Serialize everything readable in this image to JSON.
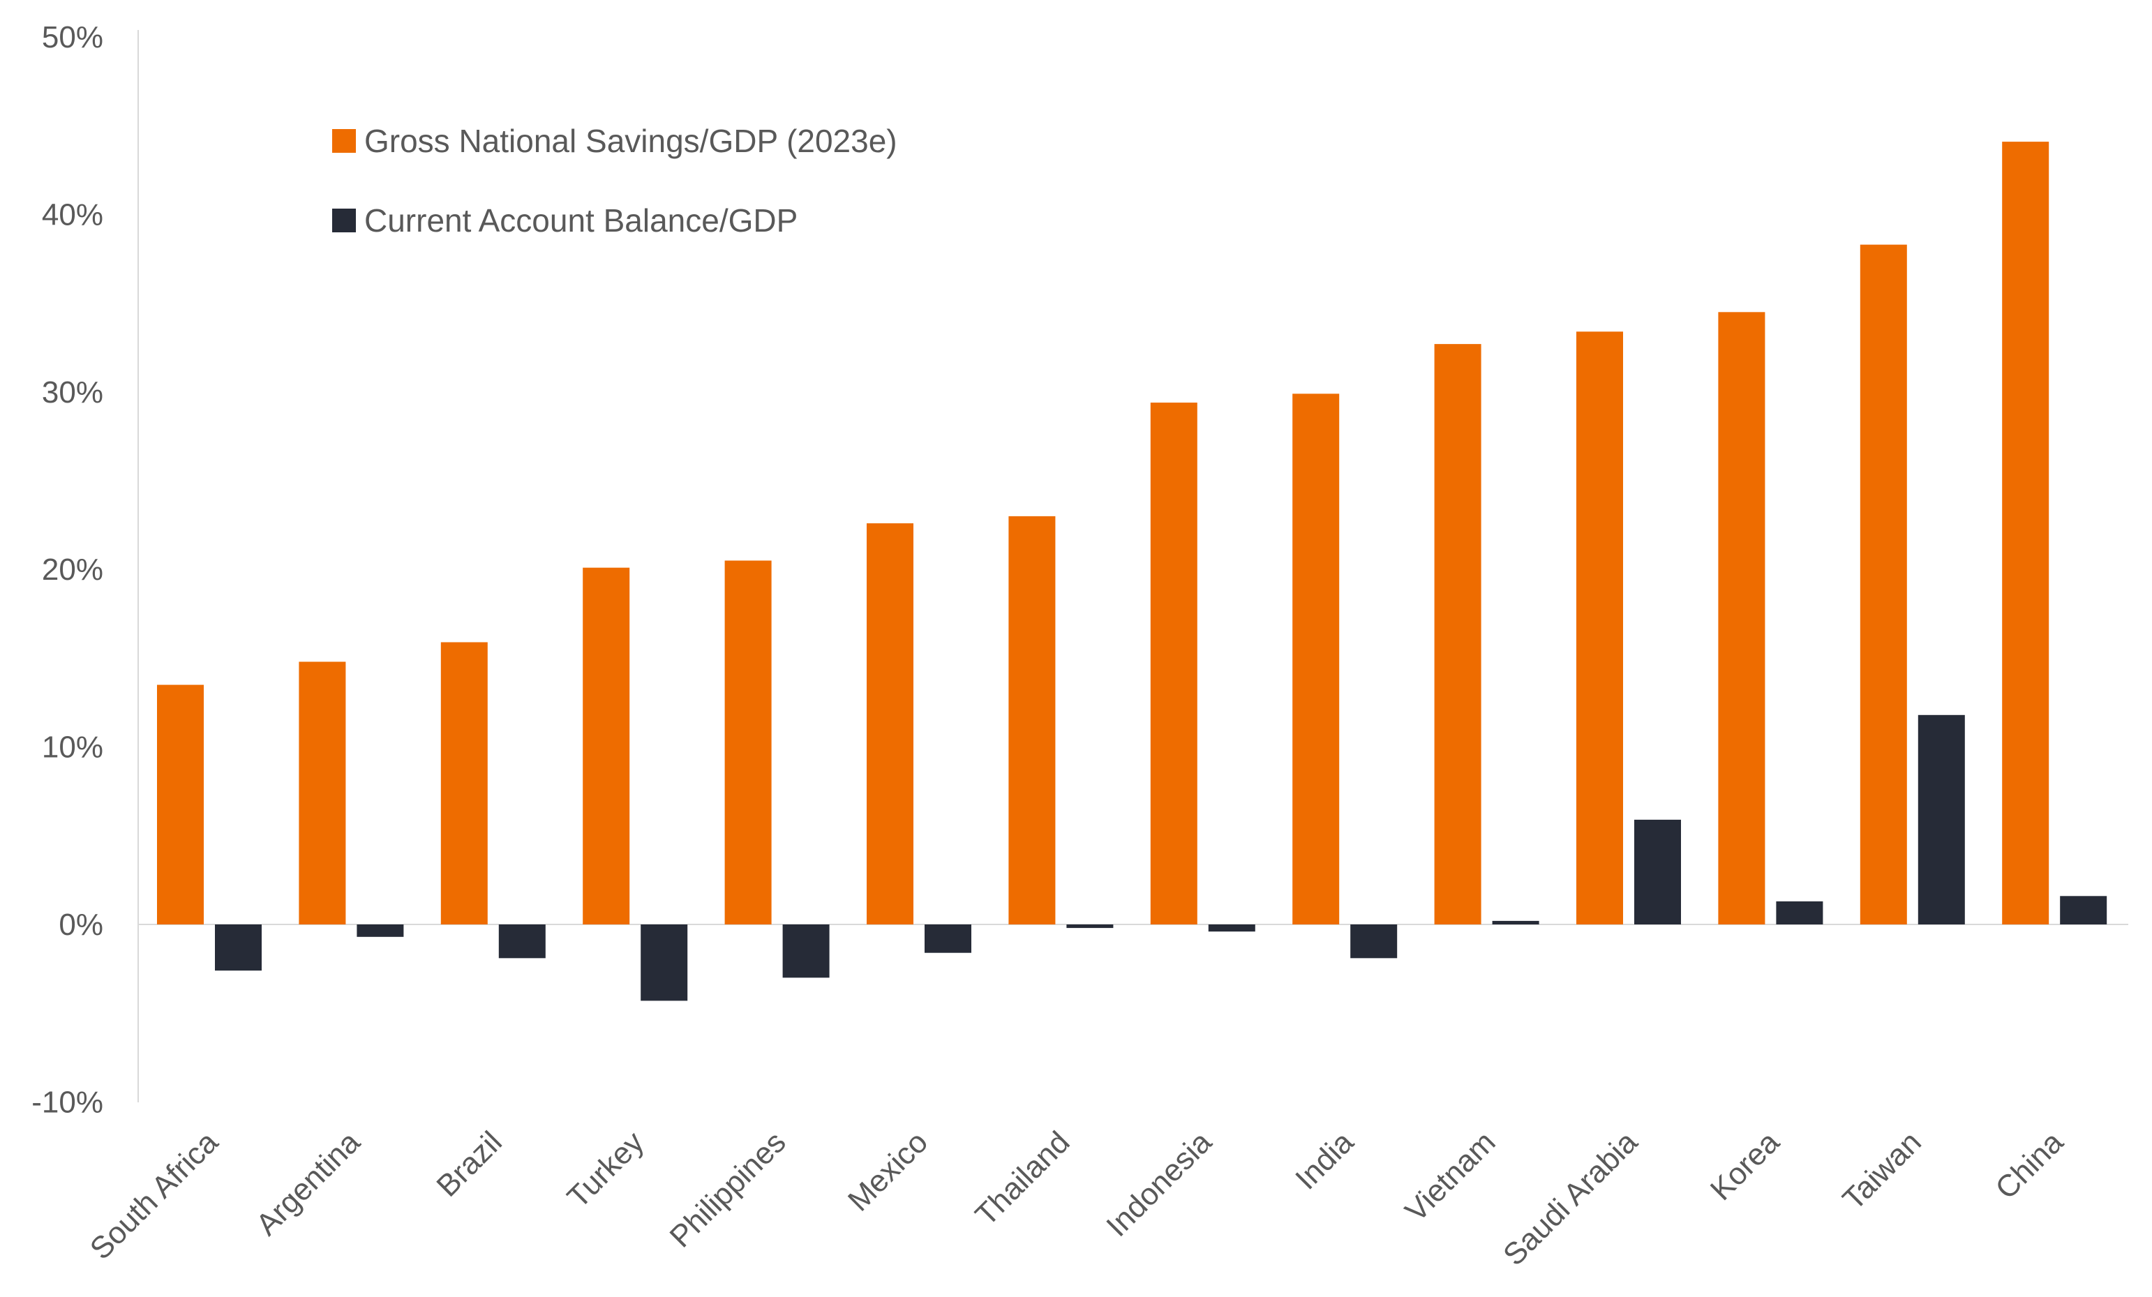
{
  "chart_data": {
    "type": "bar",
    "categories": [
      "South Africa",
      "Argentina",
      "Brazil",
      "Turkey",
      "Philippines",
      "Mexico",
      "Thailand",
      "Indonesia",
      "India",
      "Vietnam",
      "Saudi Arabia",
      "Korea",
      "Taiwan",
      "China"
    ],
    "series": [
      {
        "name": "Gross National Savings/GDP (2023e)",
        "color": "#EE6C00",
        "values": [
          13.5,
          14.8,
          15.9,
          20.1,
          20.5,
          22.6,
          23.0,
          29.4,
          29.9,
          32.7,
          33.4,
          34.5,
          38.3,
          44.1
        ]
      },
      {
        "name": "Current Account Balance/GDP",
        "color": "#262B37",
        "values": [
          -2.6,
          -0.7,
          -1.9,
          -4.3,
          -3.0,
          -1.6,
          -0.2,
          -0.4,
          -1.9,
          0.2,
          5.9,
          1.3,
          11.8,
          1.6
        ]
      }
    ],
    "ylim": [
      -10,
      50
    ],
    "yticks": [
      "-10%",
      "0%",
      "10%",
      "20%",
      "30%",
      "40%",
      "50%"
    ],
    "ytick_values": [
      -10,
      0,
      10,
      20,
      30,
      40,
      50
    ],
    "legend_position": "top-left",
    "grid": false
  }
}
